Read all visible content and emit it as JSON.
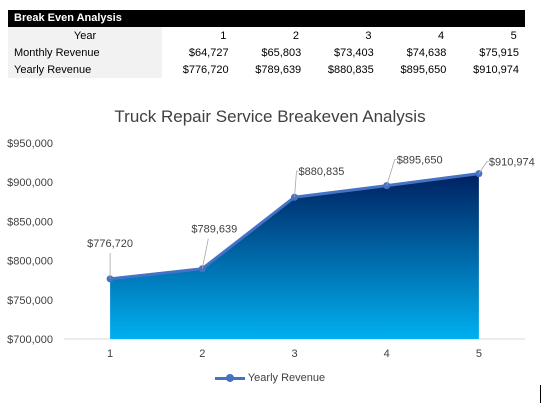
{
  "table": {
    "title": "Break Even Analysis",
    "header_label": "Year",
    "years": [
      "1",
      "2",
      "3",
      "4",
      "5"
    ],
    "rows": [
      {
        "label": "Monthly Revenue",
        "values": [
          "$64,727",
          "$65,803",
          "$73,403",
          "$74,638",
          "$75,915"
        ]
      },
      {
        "label": "Yearly Revenue",
        "values": [
          "$776,720",
          "$789,639",
          "$880,835",
          "$895,650",
          "$910,974"
        ]
      }
    ]
  },
  "chart_data": {
    "type": "area",
    "title": "Truck Repair Service Breakeven Analysis",
    "xlabel": "",
    "ylabel": "",
    "categories": [
      "1",
      "2",
      "3",
      "4",
      "5"
    ],
    "series": [
      {
        "name": "Yearly Revenue",
        "values": [
          776720,
          789639,
          880835,
          895650,
          910974
        ],
        "labels": [
          "$776,720",
          "$789,639",
          "$880,835",
          "$895,650",
          "$910,974"
        ]
      }
    ],
    "ylim": [
      700000,
      950000
    ],
    "yticks": [
      700000,
      750000,
      800000,
      850000,
      900000,
      950000
    ],
    "ytick_labels": [
      "$700,000",
      "$750,000",
      "$800,000",
      "$850,000",
      "$900,000",
      "$950,000"
    ],
    "grid": false,
    "legend": "bottom",
    "colors": {
      "line": "#4472c4",
      "fill_top": "#002060",
      "fill_bottom": "#00b0f0"
    }
  }
}
